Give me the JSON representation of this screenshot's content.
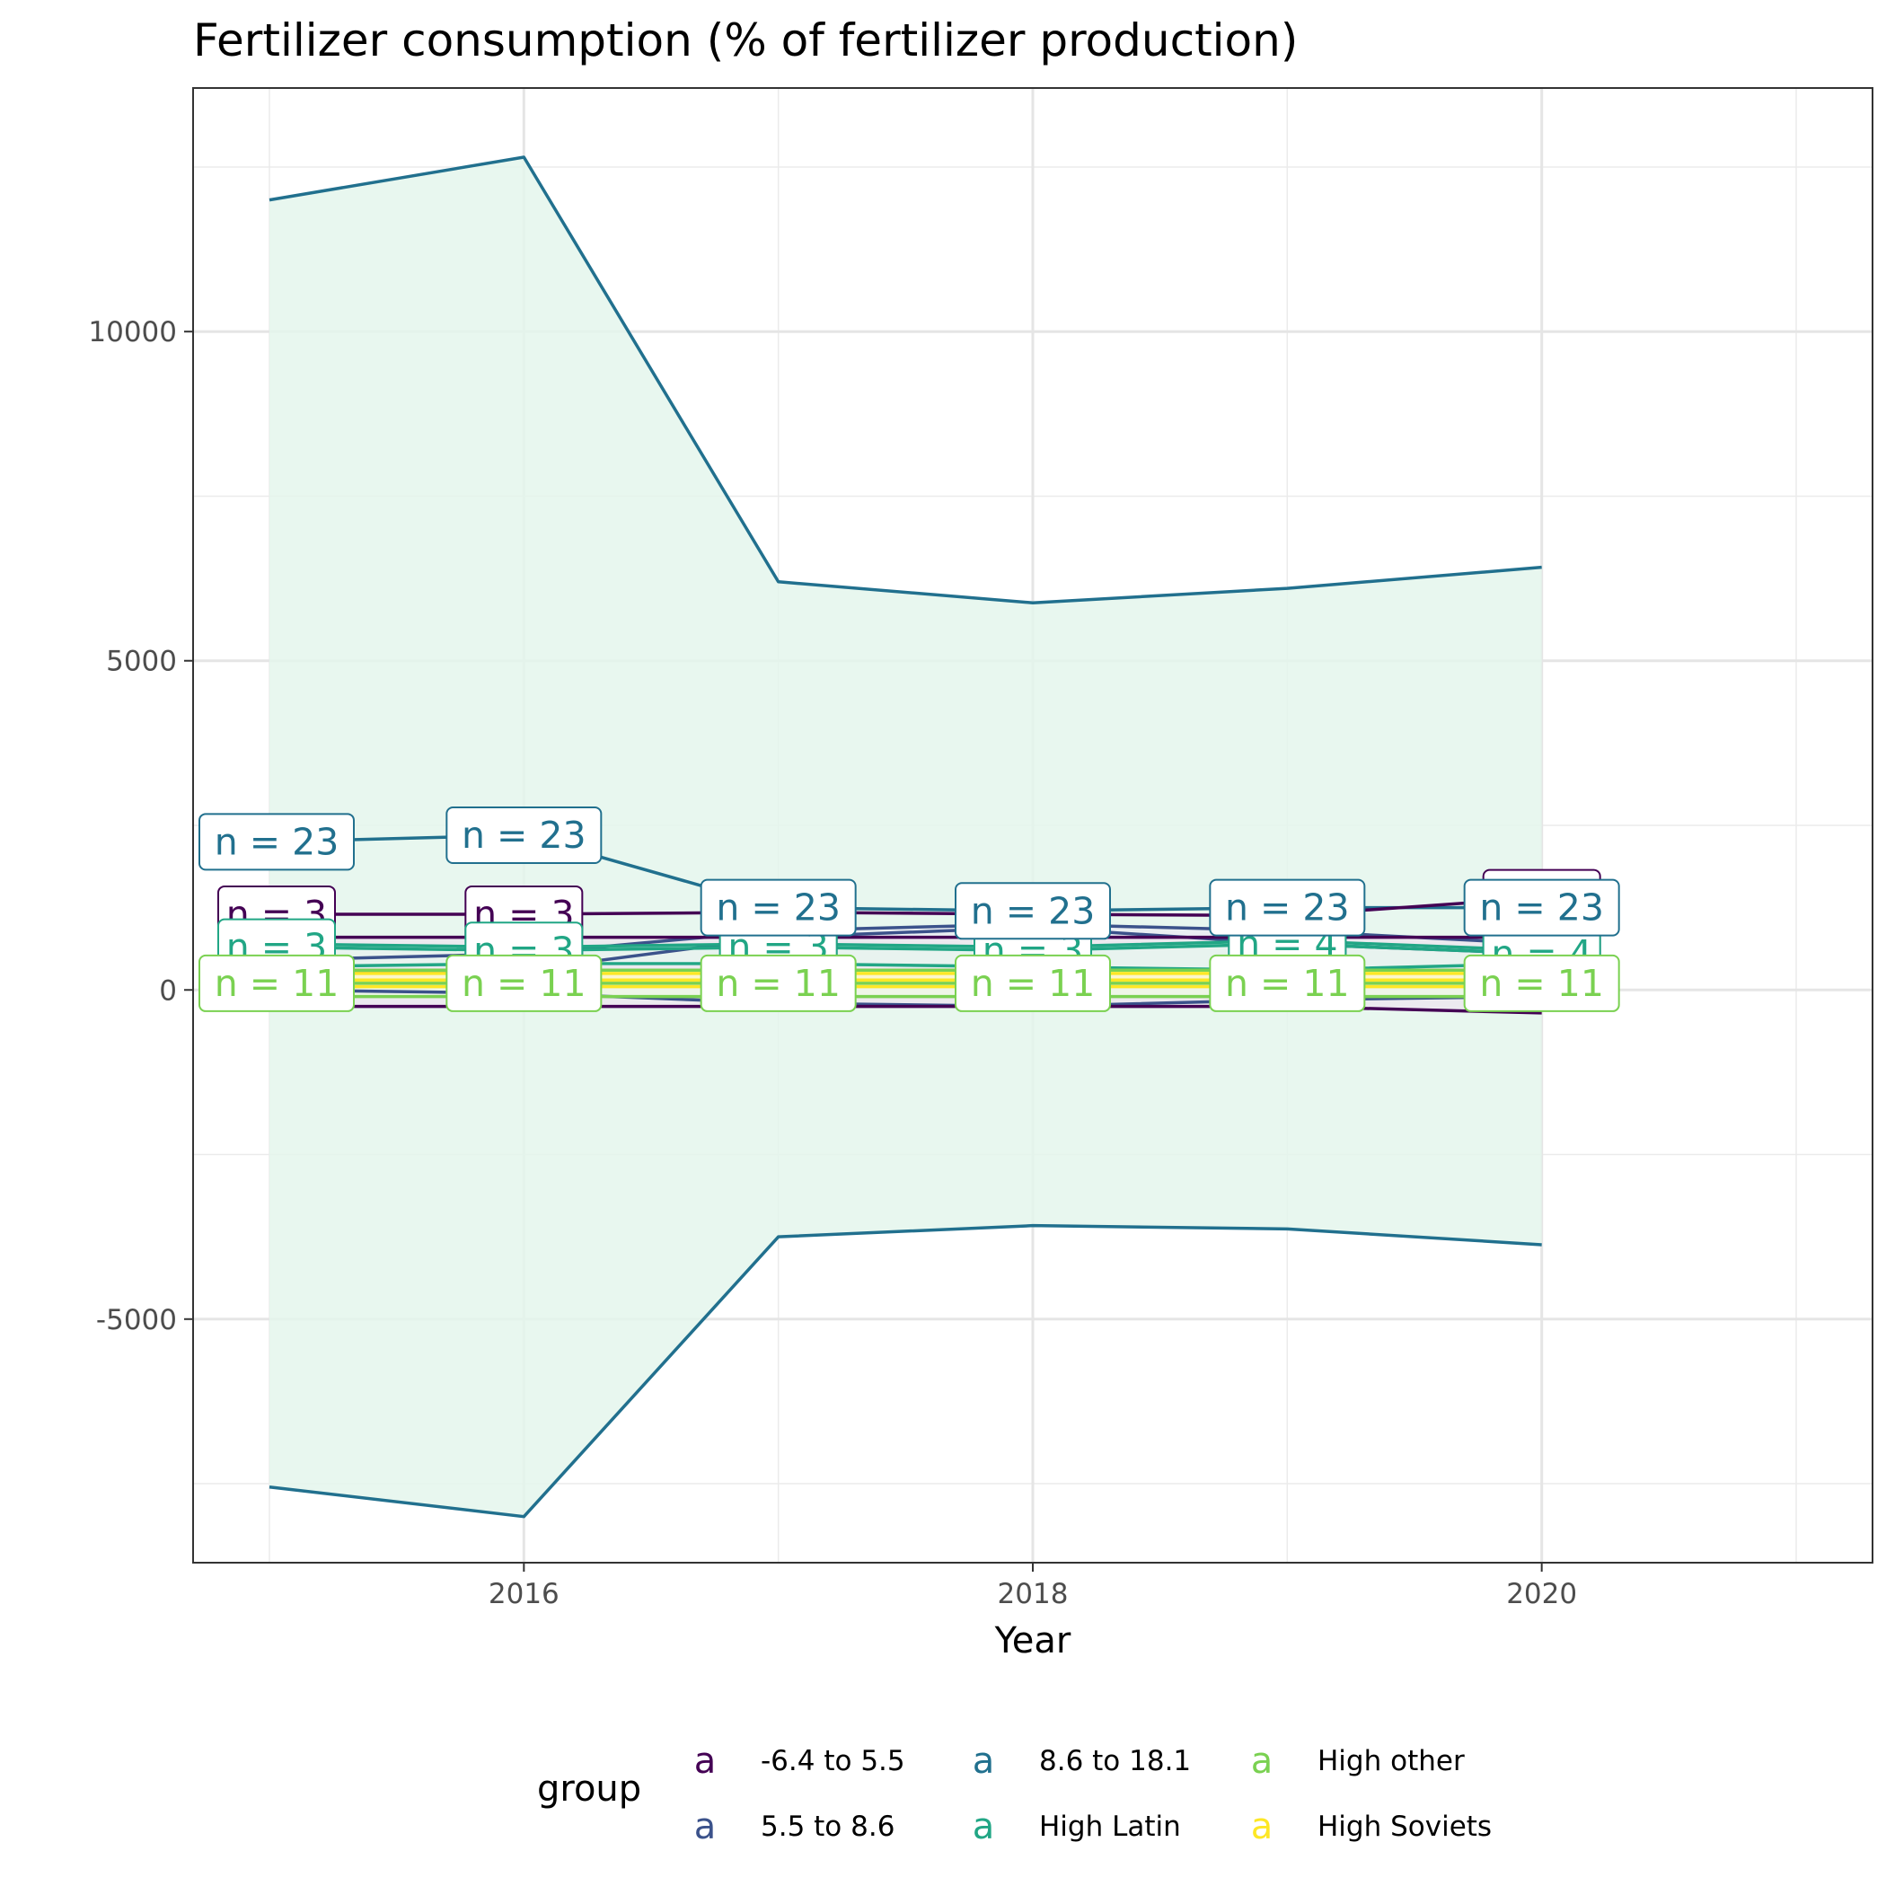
{
  "chart_data": {
    "type": "line",
    "title": "Fertilizer consumption (% of fertilizer production)",
    "xlabel": "Year",
    "ylabel": "",
    "xlim": [
      2014.7,
      2021.3
    ],
    "ylim": [
      -8700,
      13700
    ],
    "x_ticks": [
      2016,
      2018,
      2020
    ],
    "y_ticks": [
      -5000,
      0,
      5000,
      10000
    ],
    "grid": true,
    "legend": {
      "title": "group",
      "position": "bottom",
      "key_glyph": "a"
    },
    "x": [
      2015,
      2016,
      2017,
      2018,
      2019,
      2020
    ],
    "series": [
      {
        "name": "-6.4 to 5.5",
        "color": "#440154",
        "fill": "#ece7ee",
        "mean": [
          1150,
          1150,
          1180,
          1150,
          1130,
          1400
        ],
        "upper": [
          800,
          800,
          800,
          800,
          800,
          800
        ],
        "lower": [
          -250,
          -250,
          -250,
          -250,
          -250,
          -350
        ],
        "n_labels": [
          "n = 3",
          "n = 3",
          "n = 3",
          "n = 3",
          "n = 3",
          "n = 3"
        ]
      },
      {
        "name": "5.5 to 8.6",
        "color": "#3b528b",
        "fill": "#e9ecf2",
        "mean": [
          250,
          300,
          800,
          950,
          700,
          550
        ],
        "upper": [
          450,
          550,
          900,
          1000,
          900,
          700
        ],
        "lower": [
          0,
          -50,
          -200,
          -250,
          -150,
          -100
        ],
        "n_labels": [
          "n = 3",
          "n = 3",
          "n = 3",
          "n = 3",
          "n = 4",
          "n = 4"
        ]
      },
      {
        "name": "8.6 to 18.1",
        "color": "#21708e",
        "fill": "#e4f6ec",
        "mean": [
          2250,
          2350,
          1250,
          1200,
          1250,
          1250
        ],
        "upper": [
          12000,
          12650,
          6200,
          5880,
          6100,
          6420
        ],
        "lower": [
          -7550,
          -8000,
          -3750,
          -3580,
          -3630,
          -3870
        ],
        "n_labels": [
          "n = 23",
          "n = 23",
          "n = 23",
          "n = 23",
          "n = 23",
          "n = 23"
        ]
      },
      {
        "name": "High Latin",
        "color": "#21a685",
        "fill": "#e8f5ef",
        "mean": [
          650,
          600,
          650,
          600,
          700,
          550
        ],
        "upper": [
          700,
          650,
          700,
          650,
          750,
          600
        ],
        "lower": [
          350,
          400,
          400,
          350,
          300,
          400
        ],
        "n_labels": [
          "n = 3",
          "n = 3",
          "n = 3",
          "n = 3",
          "n = 4",
          "n = 4"
        ]
      },
      {
        "name": "High other",
        "color": "#7ad151",
        "fill": "#eef8e6",
        "mean": [
          100,
          100,
          100,
          100,
          100,
          100
        ],
        "upper": [
          300,
          300,
          300,
          300,
          300,
          300
        ],
        "lower": [
          -100,
          -100,
          -100,
          -100,
          -100,
          -100
        ],
        "n_labels": [
          "n = 11",
          "n = 11",
          "n = 11",
          "n = 11",
          "n = 11",
          "n = 11"
        ]
      },
      {
        "name": "High Soviets",
        "color": "#fde725",
        "fill": "#fdf6c8",
        "mean": [
          150,
          150,
          150,
          150,
          150,
          150
        ],
        "upper": [
          250,
          250,
          250,
          250,
          250,
          250
        ],
        "lower": [
          50,
          50,
          50,
          50,
          50,
          50
        ],
        "n_labels": []
      }
    ]
  }
}
